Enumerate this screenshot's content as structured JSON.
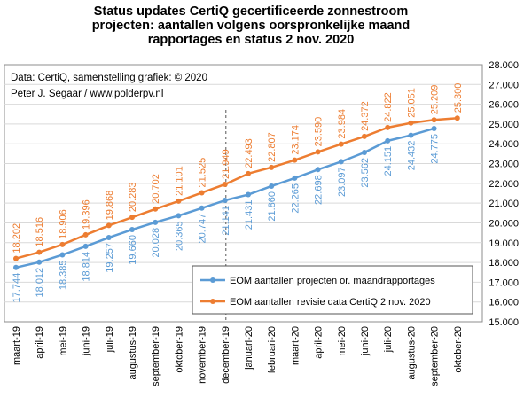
{
  "chart_data": {
    "type": "line",
    "title": [
      "Status updates CertiQ gecertificeerde  zonnestroom",
      "projecten: aantallen volgens oorspronkelijke maand",
      "rapportages en status 2 nov. 2020"
    ],
    "source_lines": [
      "Data: CertiQ, samenstelling grafiek: © 2020",
      "Peter J. Segaar / www.polderpv.nl"
    ],
    "categories": [
      "maart-19",
      "april-19",
      "mei-19",
      "juni-19",
      "juli-19",
      "augustus-19",
      "september-19",
      "oktober-19",
      "november-19",
      "december-19",
      "januari-20",
      "februari-20",
      "maart-20",
      "april-20",
      "mei-20",
      "juni-20",
      "juli-20",
      "augustus-20",
      "september-20",
      "oktober-20"
    ],
    "ylim": [
      15000,
      28000
    ],
    "yticks": [
      15000,
      16000,
      17000,
      18000,
      19000,
      20000,
      21000,
      22000,
      23000,
      24000,
      25000,
      26000,
      27000,
      28000
    ],
    "ytick_labels": [
      "15.000",
      "16.000",
      "17.000",
      "18.000",
      "19.000",
      "20.000",
      "21.000",
      "22.000",
      "23.000",
      "24.000",
      "25.000",
      "26.000",
      "27.000",
      "28.000"
    ],
    "grid": true,
    "legend_position": "bottom-right",
    "divider_after_category": "december-19",
    "series": [
      {
        "name": "EOM aantallen projecten or. maandrapportages",
        "color": "#5b9bd5",
        "values": [
          17744,
          18012,
          18385,
          18814,
          19257,
          19660,
          20028,
          20365,
          20747,
          21141,
          21431,
          21860,
          22265,
          22698,
          23097,
          23562,
          24151,
          24432,
          24775,
          null
        ],
        "labels": [
          "17.744",
          "18.012",
          "18.385",
          "18.814",
          "19.257",
          "19.660",
          "20.028",
          "20.365",
          "20.747",
          "21.141",
          "21.431",
          "21.860",
          "22.265",
          "22.698",
          "23.097",
          "23.562",
          "24.151",
          "24.432",
          "24.775",
          ""
        ]
      },
      {
        "name": "EOM aantallen revisie data CertiQ 2 nov. 2020",
        "color": "#ed7d31",
        "values": [
          18202,
          18516,
          18906,
          19396,
          19868,
          20283,
          20702,
          21101,
          21525,
          21949,
          22493,
          22807,
          23174,
          23590,
          23984,
          24372,
          24822,
          25051,
          25209,
          25300
        ],
        "labels": [
          "18.202",
          "18.516",
          "18.906",
          "19.396",
          "19.868",
          "20.283",
          "20.702",
          "21.101",
          "21.525",
          "21.949",
          "22.493",
          "22.807",
          "23.174",
          "23.590",
          "23.984",
          "24.372",
          "24.822",
          "25.051",
          "25.209",
          "25.300"
        ]
      }
    ]
  }
}
